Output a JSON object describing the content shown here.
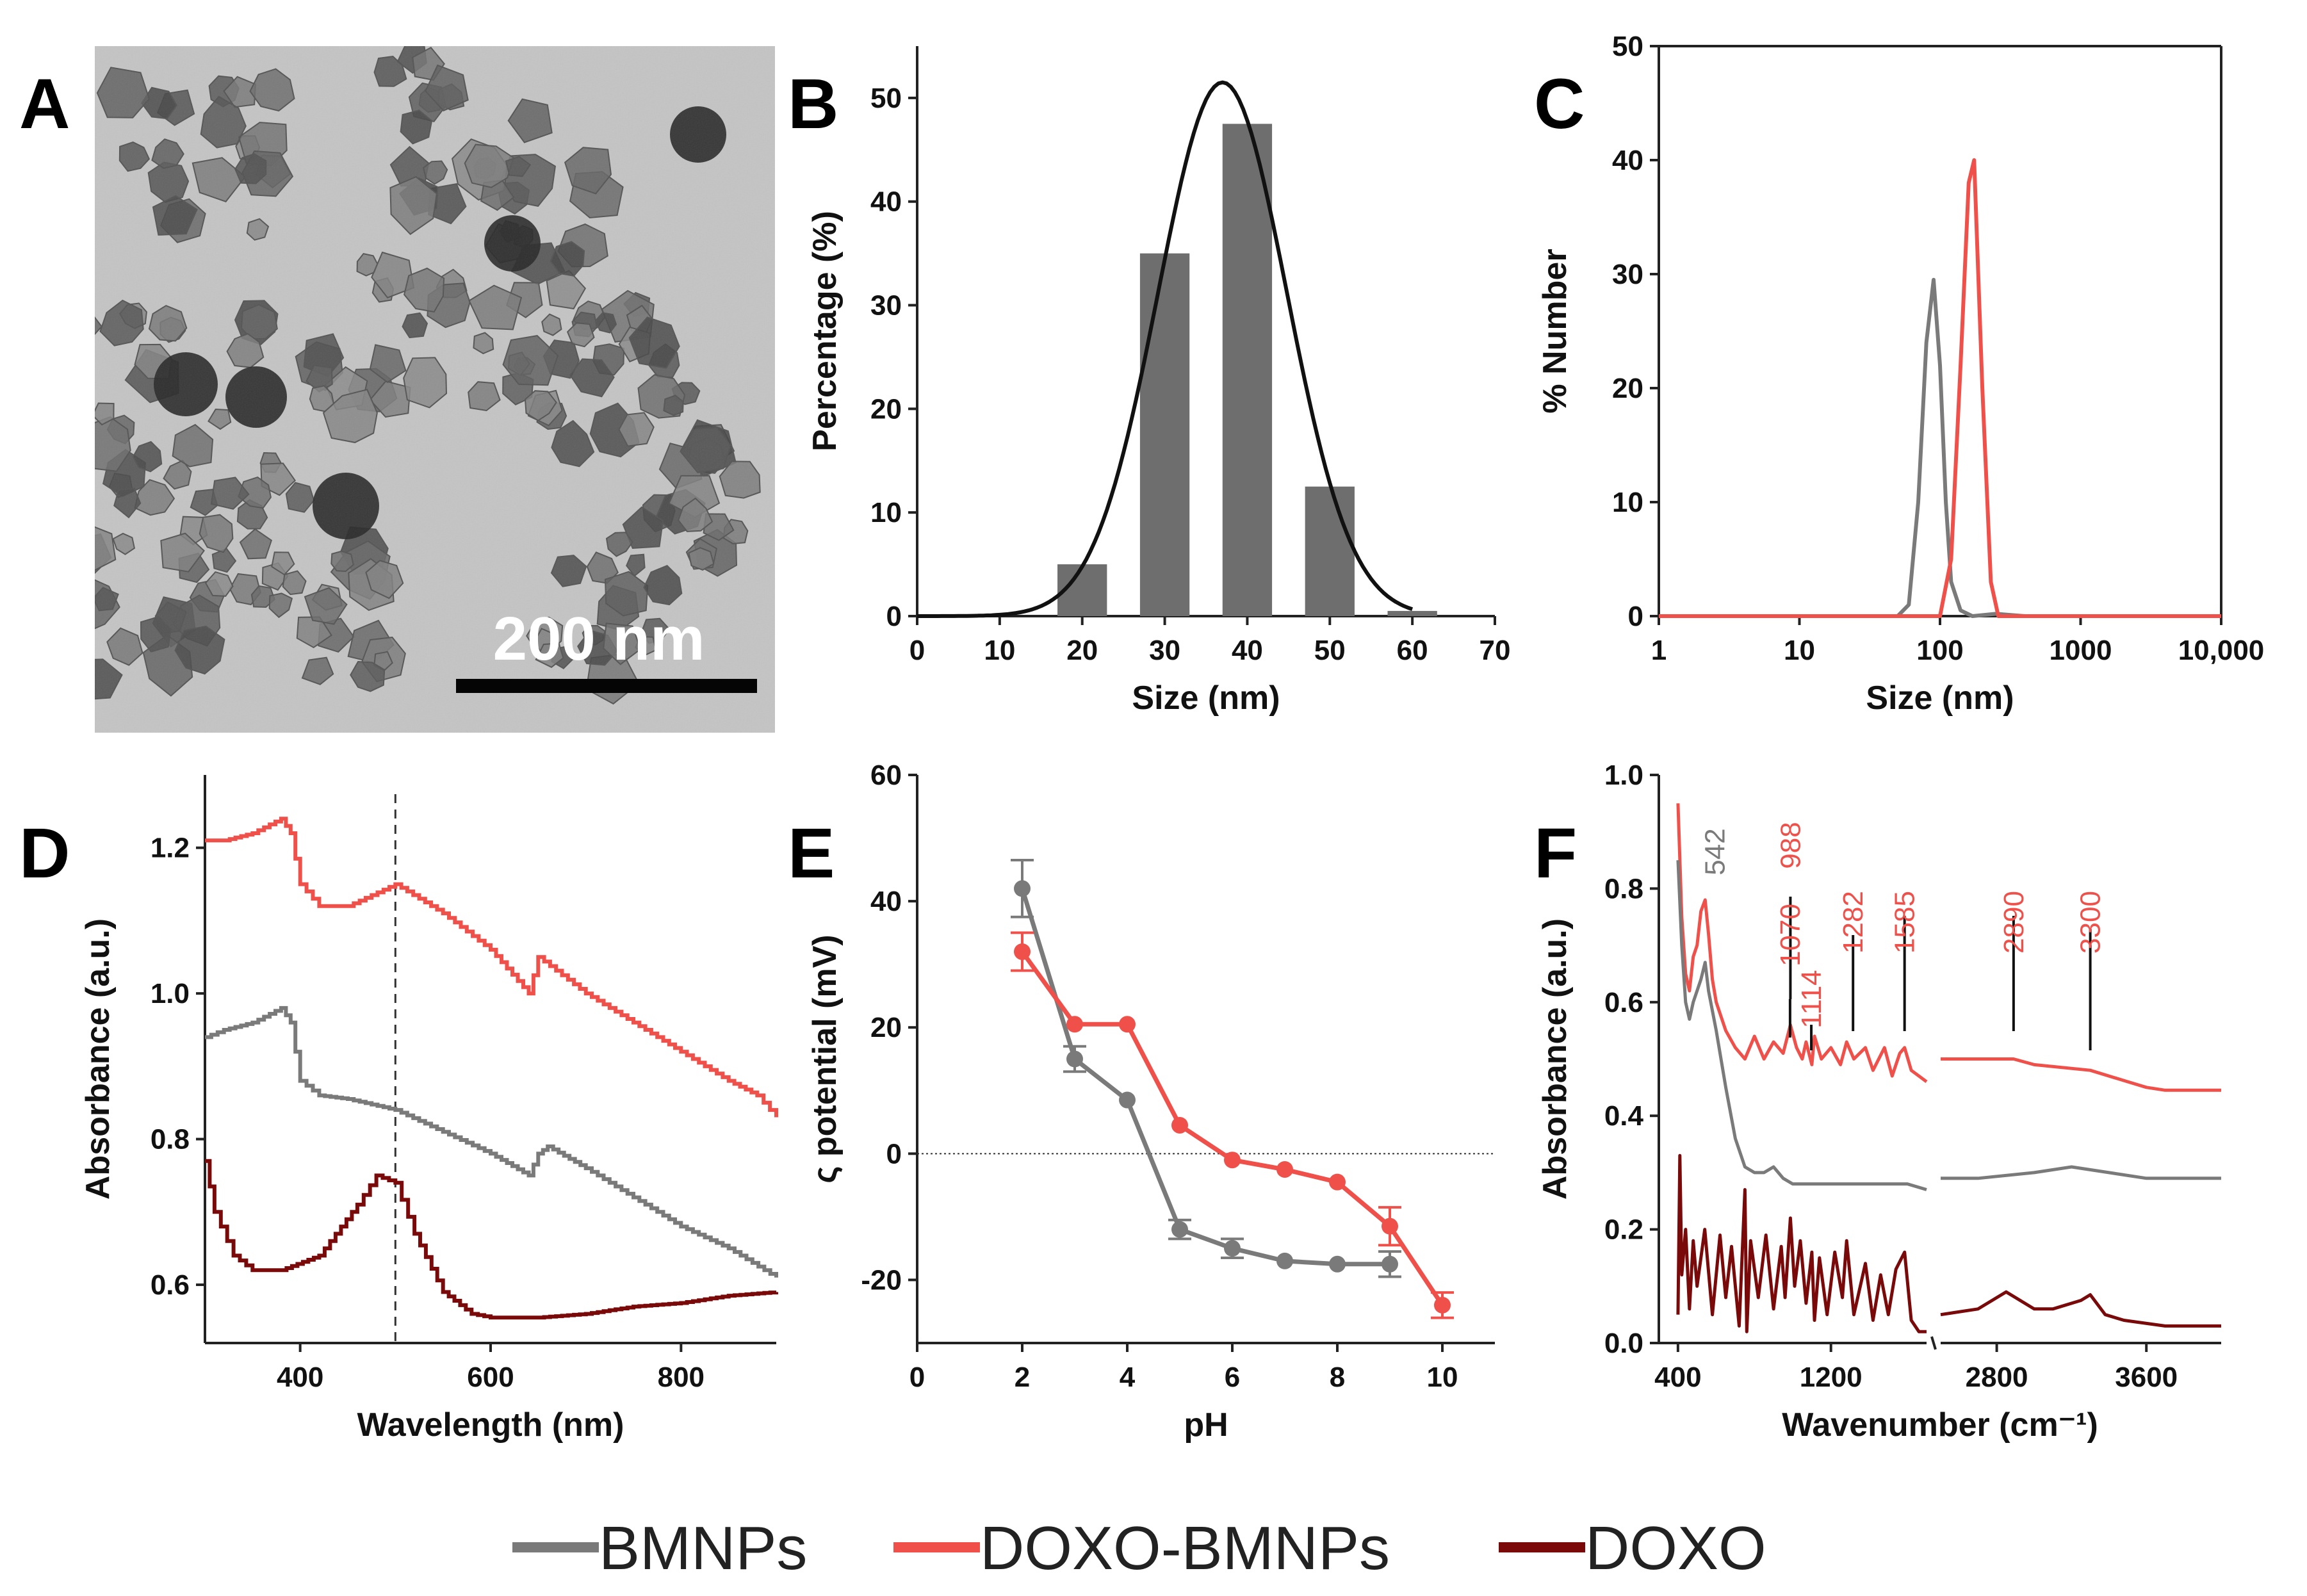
{
  "colors": {
    "BMNPs": "#7a7a7a",
    "DOXO-BMNPs": "#f0504a",
    "DOXO": "#7a0a0a",
    "bars": "#6e6e6e",
    "fit": "#111111"
  },
  "panels": {
    "A": {
      "letter": "A",
      "scale_bar_label": "200 nm"
    },
    "B": {
      "letter": "B"
    },
    "C": {
      "letter": "C"
    },
    "D": {
      "letter": "D"
    },
    "E": {
      "letter": "E"
    },
    "F": {
      "letter": "F"
    }
  },
  "legend": [
    {
      "name": "BMNPs",
      "color": "#7a7a7a"
    },
    {
      "name": "DOXO-BMNPs",
      "color": "#f0504a"
    },
    {
      "name": "DOXO",
      "color": "#7a0a0a"
    }
  ],
  "chart_data": [
    {
      "panel": "B",
      "type": "bar",
      "xlabel": "Size (nm)",
      "ylabel": "Percentage (%)",
      "xlim": [
        0,
        70
      ],
      "ylim": [
        0,
        55
      ],
      "xticks": [
        "0",
        "10",
        "20",
        "30",
        "40",
        "50",
        "60",
        "70"
      ],
      "yticks": [
        "0",
        "10",
        "20",
        "30",
        "40",
        "50"
      ],
      "bars": [
        {
          "x": 20,
          "y": 5
        },
        {
          "x": 30,
          "y": 35
        },
        {
          "x": 40,
          "y": 47.5
        },
        {
          "x": 50,
          "y": 12.5
        },
        {
          "x": 60,
          "y": 0.5
        }
      ],
      "fit": {
        "type": "gaussian",
        "peak_x": 37,
        "peak_y": 51.5,
        "sigma": 7.8
      }
    },
    {
      "panel": "C",
      "type": "line",
      "xlabel": "Size (nm)",
      "ylabel": "% Number",
      "xscale": "log",
      "xlim": [
        1,
        10000
      ],
      "ylim": [
        0,
        50
      ],
      "xticks": [
        "1",
        "10",
        "100",
        "1000",
        "10,000"
      ],
      "yticks": [
        "0",
        "10",
        "20",
        "30",
        "40",
        "50"
      ],
      "series": [
        {
          "name": "BMNPs",
          "x": [
            1,
            50,
            60,
            70,
            80,
            90,
            100,
            110,
            120,
            140,
            170,
            250,
            400,
            2500
          ],
          "y": [
            0,
            0,
            1,
            10,
            24,
            29.5,
            22,
            10,
            3,
            0.5,
            0,
            0.2,
            0,
            0
          ]
        },
        {
          "name": "DOXO-BMNPs",
          "x": [
            1,
            100,
            120,
            140,
            160,
            175,
            200,
            230,
            260,
            10000
          ],
          "y": [
            0,
            0,
            5,
            22,
            38,
            40,
            20,
            3,
            0,
            0
          ]
        }
      ]
    },
    {
      "panel": "D",
      "type": "line",
      "xlabel": "Wavelength (nm)",
      "ylabel": "Absorbance (a.u.)",
      "xlim": [
        300,
        900
      ],
      "ylim": [
        0.52,
        1.3
      ],
      "vline_x": 500,
      "xticks": [
        "400",
        "600",
        "800"
      ],
      "yticks": [
        "0.6",
        "0.8",
        "1.0",
        "1.2"
      ],
      "series": [
        {
          "name": "DOXO-BMNPs",
          "x": [
            300,
            320,
            350,
            380,
            390,
            400,
            420,
            450,
            500,
            550,
            600,
            640,
            650,
            700,
            750,
            800,
            850,
            880,
            900
          ],
          "y": [
            1.21,
            1.21,
            1.22,
            1.24,
            1.22,
            1.15,
            1.12,
            1.12,
            1.15,
            1.11,
            1.06,
            1.0,
            1.05,
            1.0,
            0.96,
            0.92,
            0.88,
            0.86,
            0.83
          ]
        },
        {
          "name": "BMNPs",
          "x": [
            300,
            320,
            350,
            380,
            390,
            400,
            420,
            450,
            500,
            550,
            600,
            640,
            650,
            660,
            700,
            750,
            800,
            850,
            900
          ],
          "y": [
            0.94,
            0.95,
            0.96,
            0.98,
            0.96,
            0.88,
            0.86,
            0.855,
            0.84,
            0.81,
            0.78,
            0.75,
            0.78,
            0.79,
            0.76,
            0.72,
            0.68,
            0.65,
            0.61
          ]
        },
        {
          "name": "DOXO",
          "x": [
            300,
            310,
            330,
            350,
            380,
            420,
            460,
            480,
            500,
            520,
            550,
            580,
            600,
            650,
            700,
            750,
            800,
            850,
            900
          ],
          "y": [
            0.77,
            0.7,
            0.64,
            0.62,
            0.62,
            0.64,
            0.71,
            0.75,
            0.74,
            0.67,
            0.59,
            0.56,
            0.555,
            0.555,
            0.56,
            0.57,
            0.575,
            0.585,
            0.59
          ]
        }
      ]
    },
    {
      "panel": "E",
      "type": "scatter",
      "xlabel": "pH",
      "ylabel": "ς potential (mV)",
      "xlim": [
        0,
        11
      ],
      "ylim": [
        -30,
        60
      ],
      "hline_y": 0,
      "xticks": [
        "0",
        "2",
        "4",
        "6",
        "8",
        "10"
      ],
      "yticks": [
        "-20",
        "0",
        "20",
        "40",
        "60"
      ],
      "series": [
        {
          "name": "BMNPs",
          "x": [
            2,
            3,
            4,
            5,
            6,
            7,
            8,
            9
          ],
          "y": [
            42,
            15,
            8.5,
            -12,
            -15,
            -17,
            -17.5,
            -17.5
          ],
          "err": [
            4.5,
            2,
            0,
            1.5,
            1.5,
            0,
            0,
            2
          ]
        },
        {
          "name": "DOXO-BMNPs",
          "x": [
            2,
            3,
            4,
            5,
            6,
            7,
            8,
            9,
            10
          ],
          "y": [
            32,
            20.5,
            20.5,
            4.5,
            -1,
            -2.5,
            -4.5,
            -11.5,
            -24
          ],
          "err": [
            3,
            0,
            0,
            0,
            0,
            0,
            0,
            3,
            2
          ]
        }
      ]
    },
    {
      "panel": "F",
      "type": "line",
      "xlabel": "Wavenumber (cm⁻¹)",
      "ylabel": "Absorbance (a.u.)",
      "ylim": [
        0,
        1.0
      ],
      "xticks": [
        "400",
        "1200",
        "2800",
        "3600"
      ],
      "yticks": [
        "0.0",
        "0.2",
        "0.4",
        "0.6",
        "0.8",
        "1.0"
      ],
      "segments": [
        {
          "xlim": [
            300,
            1700
          ]
        },
        {
          "xlim": [
            2500,
            4000
          ]
        }
      ],
      "peak_labels": [
        {
          "text": "542",
          "x": 542,
          "color": "#7a7a7a"
        },
        {
          "text": "988",
          "x": 988,
          "color": "#f0504a"
        },
        {
          "text": "1070",
          "x": 1070,
          "color": "#f0504a"
        },
        {
          "text": "1114",
          "x": 1114,
          "color": "#f0504a"
        },
        {
          "text": "1282",
          "x": 1282,
          "color": "#f0504a"
        },
        {
          "text": "1585",
          "x": 1585,
          "color": "#f0504a"
        },
        {
          "text": "2890",
          "x": 2890,
          "color": "#f0504a"
        },
        {
          "text": "3300",
          "x": 3300,
          "color": "#f0504a"
        }
      ],
      "series": [
        {
          "name": "DOXO-BMNPs",
          "x1": [
            400,
            420,
            440,
            460,
            480,
            500,
            520,
            542,
            560,
            580,
            600,
            650,
            700,
            750,
            800,
            850,
            900,
            950,
            988,
            1020,
            1050,
            1070,
            1100,
            1114,
            1150,
            1200,
            1250,
            1282,
            1320,
            1380,
            1420,
            1480,
            1520,
            1560,
            1585,
            1620,
            1660,
            1700
          ],
          "y1": [
            0.95,
            0.75,
            0.65,
            0.62,
            0.68,
            0.7,
            0.76,
            0.78,
            0.72,
            0.64,
            0.6,
            0.55,
            0.52,
            0.5,
            0.54,
            0.5,
            0.53,
            0.51,
            0.56,
            0.52,
            0.5,
            0.53,
            0.49,
            0.54,
            0.5,
            0.52,
            0.49,
            0.53,
            0.5,
            0.52,
            0.48,
            0.52,
            0.47,
            0.51,
            0.52,
            0.48,
            0.47,
            0.46
          ],
          "x2": [
            2500,
            2700,
            2890,
            3000,
            3300,
            3500,
            3600,
            3700,
            4000
          ],
          "y2": [
            0.5,
            0.5,
            0.5,
            0.49,
            0.48,
            0.46,
            0.45,
            0.445,
            0.445
          ]
        },
        {
          "name": "BMNPs",
          "x1": [
            400,
            420,
            440,
            460,
            480,
            500,
            520,
            542,
            560,
            600,
            650,
            700,
            750,
            800,
            850,
            900,
            950,
            1000,
            1100,
            1200,
            1300,
            1400,
            1500,
            1600,
            1700
          ],
          "y1": [
            0.85,
            0.7,
            0.6,
            0.57,
            0.6,
            0.62,
            0.64,
            0.67,
            0.62,
            0.55,
            0.45,
            0.36,
            0.31,
            0.3,
            0.3,
            0.31,
            0.29,
            0.28,
            0.28,
            0.28,
            0.28,
            0.28,
            0.28,
            0.28,
            0.27
          ],
          "x2": [
            2500,
            2700,
            3000,
            3200,
            3400,
            3600,
            4000
          ],
          "y2": [
            0.29,
            0.29,
            0.3,
            0.31,
            0.3,
            0.29,
            0.29
          ]
        },
        {
          "name": "DOXO",
          "x1": [
            400,
            410,
            420,
            440,
            460,
            480,
            500,
            540,
            580,
            620,
            650,
            680,
            720,
            750,
            760,
            780,
            820,
            860,
            900,
            940,
            960,
            988,
            1010,
            1040,
            1070,
            1100,
            1114,
            1140,
            1180,
            1220,
            1260,
            1282,
            1320,
            1380,
            1420,
            1460,
            1500,
            1540,
            1585,
            1620,
            1660,
            1700
          ],
          "y1": [
            0.05,
            0.33,
            0.12,
            0.2,
            0.06,
            0.18,
            0.1,
            0.2,
            0.05,
            0.19,
            0.08,
            0.17,
            0.03,
            0.27,
            0.02,
            0.18,
            0.08,
            0.19,
            0.06,
            0.17,
            0.08,
            0.22,
            0.1,
            0.18,
            0.07,
            0.16,
            0.04,
            0.15,
            0.05,
            0.16,
            0.08,
            0.18,
            0.05,
            0.14,
            0.04,
            0.12,
            0.05,
            0.13,
            0.16,
            0.04,
            0.02,
            0.02
          ],
          "x2": [
            2500,
            2700,
            2850,
            2900,
            3000,
            3100,
            3250,
            3300,
            3380,
            3480,
            3700,
            4000
          ],
          "y2": [
            0.05,
            0.06,
            0.09,
            0.08,
            0.06,
            0.06,
            0.075,
            0.085,
            0.05,
            0.04,
            0.03,
            0.03
          ]
        }
      ]
    }
  ]
}
